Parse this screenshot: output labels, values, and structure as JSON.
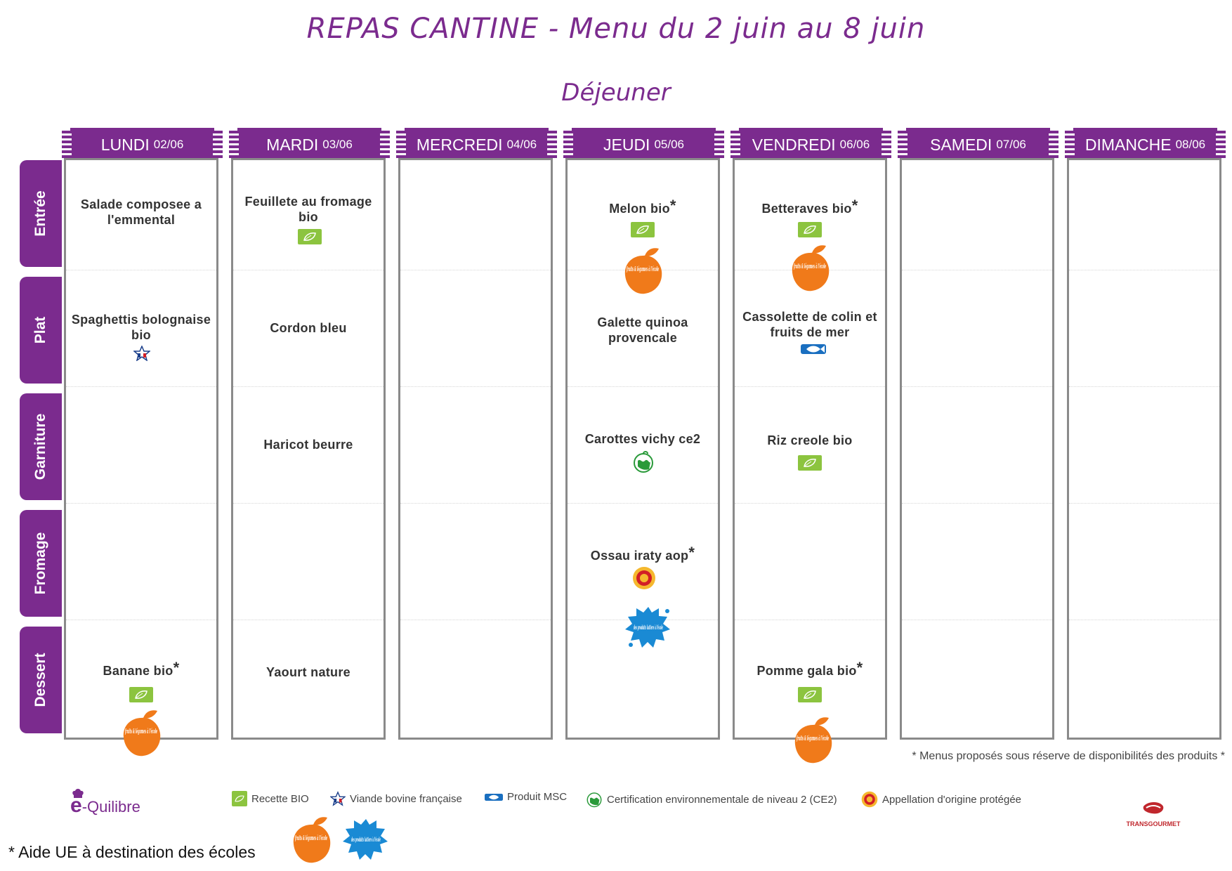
{
  "title": "REPAS CANTINE - Menu du 2 juin au 8 juin",
  "subtitle": "Déjeuner",
  "rows": [
    "Entrée",
    "Plat",
    "Garniture",
    "Fromage",
    "Dessert"
  ],
  "days": [
    {
      "name": "LUNDI",
      "date": "02/06"
    },
    {
      "name": "MARDI",
      "date": "03/06"
    },
    {
      "name": "MERCREDI",
      "date": "04/06"
    },
    {
      "name": "JEUDI",
      "date": "05/06"
    },
    {
      "name": "VENDREDI",
      "date": "06/06"
    },
    {
      "name": "SAMEDI",
      "date": "07/06"
    },
    {
      "name": "DIMANCHE",
      "date": "08/06"
    }
  ],
  "dishes": {
    "lundi_entree": "Salade composee a l'emmental",
    "lundi_plat": "Spaghettis bolognaise bio",
    "lundi_dessert": "Banane bio",
    "mardi_entree": "Feuillete au fromage bio",
    "mardi_plat": "Cordon bleu",
    "mardi_garniture": "Haricot beurre",
    "mardi_dessert": "Yaourt nature",
    "jeudi_entree": "Melon bio",
    "jeudi_plat": "Galette quinoa provencale",
    "jeudi_garniture": "Carottes vichy ce2",
    "jeudi_fromage": "Ossau iraty aop",
    "vendredi_entree": "Betteraves bio",
    "vendredi_plat": "Cassolette de colin et fruits de mer",
    "vendredi_garniture": "Riz creole bio",
    "vendredi_dessert": "Pomme gala bio"
  },
  "asterisk": "*",
  "fruit_logo_text": "fruits & légumes à l'école",
  "lait_logo_text": "des produits laitiers à l'école",
  "footnote": "* Menus proposés sous réserve de disponibilités des produits *",
  "legend": {
    "bio": "Recette BIO",
    "vbf": "Viande bovine française",
    "msc": "Produit MSC",
    "ce2": "Certification environnementale de niveau 2 (CE2)",
    "aop": "Appellation d'origine protégée"
  },
  "aide": "* Aide UE à destination des écoles",
  "logo_left": {
    "prefix": "e",
    "name": "-Quilibre"
  },
  "logo_right": "TRANSGOURMET",
  "colors": {
    "accent": "#7b2b8e",
    "bio_green": "#8cc43f",
    "fruit_orange": "#f07a1a",
    "msc_blue": "#1a6fc0",
    "lait_blue": "#1a8ad4"
  }
}
